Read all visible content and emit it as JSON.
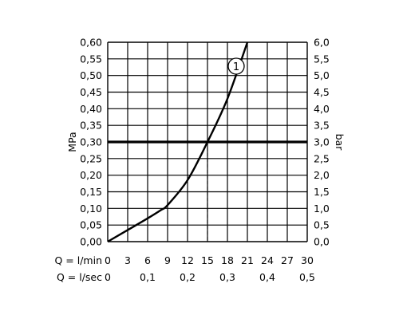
{
  "chart_data": {
    "type": "line",
    "grid": true,
    "x": {
      "label": "Q = l/min",
      "ticks": [
        "0",
        "3",
        "6",
        "9",
        "12",
        "15",
        "18",
        "21",
        "24",
        "27",
        "30"
      ],
      "range": [
        0,
        30
      ]
    },
    "x2": {
      "label": "Q = l/sec",
      "ticks": [
        {
          "value": 0,
          "label": "0"
        },
        {
          "value": 0.1,
          "label": "0,1"
        },
        {
          "value": 0.2,
          "label": "0,2"
        },
        {
          "value": 0.3,
          "label": "0,3"
        },
        {
          "value": 0.4,
          "label": "0,4"
        },
        {
          "value": 0.5,
          "label": "0,5"
        }
      ],
      "range": [
        0,
        0.5
      ]
    },
    "y": {
      "label": "MPa",
      "ticks": [
        "0,00",
        "0,05",
        "0,10",
        "0,15",
        "0,20",
        "0,25",
        "0,30",
        "0,35",
        "0,40",
        "0,45",
        "0,50",
        "0,55",
        "0,60"
      ],
      "range": [
        0,
        0.6
      ]
    },
    "y2": {
      "label": "bar",
      "ticks": [
        "0,0",
        "0,5",
        "1,0",
        "1,5",
        "2,0",
        "2,5",
        "3,0",
        "3,5",
        "4,0",
        "4,5",
        "5,0",
        "5,5",
        "6,0"
      ],
      "range": [
        0,
        6
      ]
    },
    "series": [
      {
        "marker": "1",
        "points": [
          {
            "x": 0,
            "y": 0
          },
          {
            "x": 3,
            "y": 0.035
          },
          {
            "x": 6,
            "y": 0.07
          },
          {
            "x": 8,
            "y": 0.095
          },
          {
            "x": 9,
            "y": 0.11
          },
          {
            "x": 12,
            "y": 0.185
          },
          {
            "x": 15,
            "y": 0.3
          },
          {
            "x": 18,
            "y": 0.43
          },
          {
            "x": 21,
            "y": 0.6
          }
        ]
      }
    ],
    "reference_line_y": 0.3,
    "reference_drop_x": 15
  }
}
